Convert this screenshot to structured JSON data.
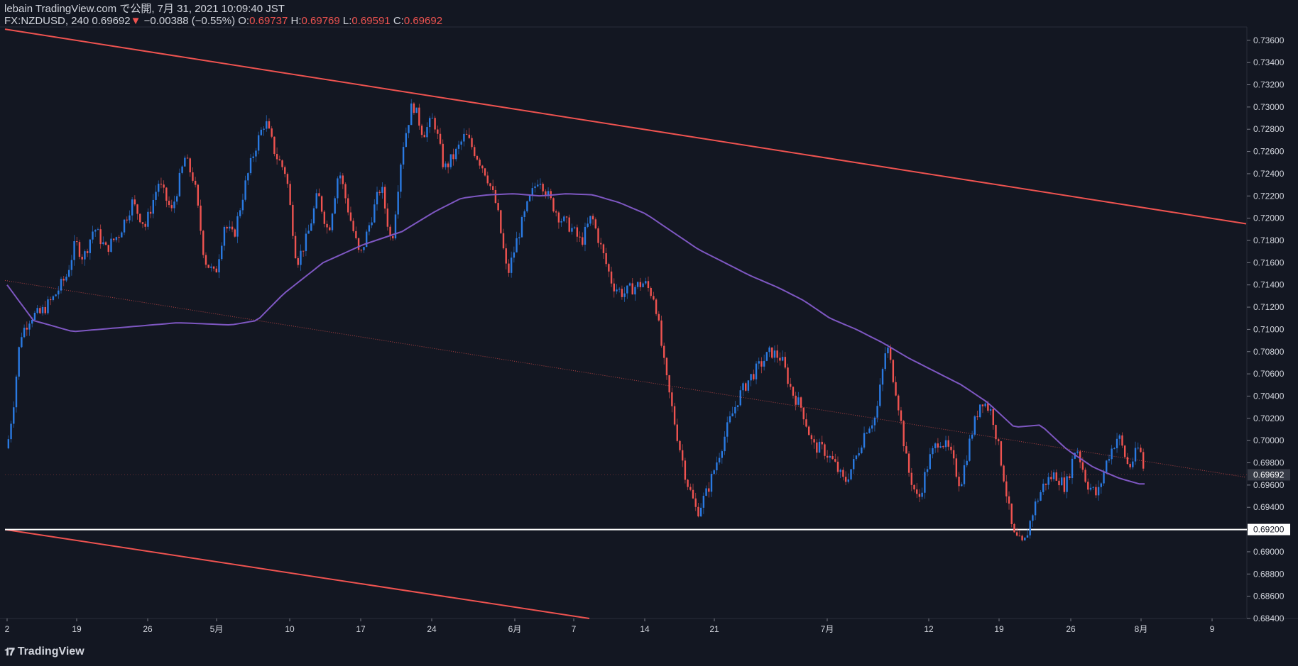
{
  "header": {
    "line1": "lebain TradingView.com で公開, 7月 31, 2021 10:09:40 JST",
    "symbol": "FX:NZDUSD, 240",
    "last": "0.69692",
    "change": "−0.00388 (−0.55%)",
    "o_label": "O:",
    "o": "0.69737",
    "h_label": "H:",
    "h": "0.69769",
    "l_label": "L:",
    "l": "0.69591",
    "c_label": "C:",
    "c": "0.69692"
  },
  "brand": {
    "logo_text": "TradingView",
    "logo_icon": "tradingview-logo-icon"
  },
  "colors": {
    "background": "#131722",
    "up": "#2a7ae2",
    "down": "#ef5350",
    "ma": "#7e57c2",
    "channel": "#ef5350",
    "support": "#ffffff"
  },
  "chart_data": {
    "type": "candlestick",
    "symbol": "FX:NZDUSD",
    "timeframe": "240",
    "ylim": [
      0.684,
      0.7372
    ],
    "yticks": [
      "0.73600",
      "0.73400",
      "0.73200",
      "0.73000",
      "0.72800",
      "0.72600",
      "0.72400",
      "0.72200",
      "0.72000",
      "0.71800",
      "0.71600",
      "0.71400",
      "0.71200",
      "0.71000",
      "0.70800",
      "0.70600",
      "0.70400",
      "0.70200",
      "0.70000",
      "0.69800",
      "0.69600",
      "0.69400",
      "0.69000",
      "0.68800",
      "0.68600",
      "0.68400"
    ],
    "xticks": [
      "2",
      "19",
      "26",
      "5月",
      "10",
      "17",
      "24",
      "6月",
      "7",
      "14",
      "21",
      "7月",
      "12",
      "19",
      "26",
      "8月",
      "9"
    ],
    "last_price_label": "0.69692",
    "support_label": "0.69200",
    "support_level": 0.692,
    "close_path": [
      [
        0,
        0.6993
      ],
      [
        5,
        0.7035
      ],
      [
        10,
        0.7094
      ],
      [
        18,
        0.7112
      ],
      [
        25,
        0.7114
      ],
      [
        35,
        0.7128
      ],
      [
        45,
        0.7148
      ],
      [
        52,
        0.7178
      ],
      [
        58,
        0.7164
      ],
      [
        66,
        0.7192
      ],
      [
        75,
        0.7172
      ],
      [
        85,
        0.7186
      ],
      [
        95,
        0.7214
      ],
      [
        105,
        0.7193
      ],
      [
        115,
        0.7232
      ],
      [
        125,
        0.7206
      ],
      [
        135,
        0.7254
      ],
      [
        142,
        0.7234
      ],
      [
        150,
        0.7163
      ],
      [
        158,
        0.7148
      ],
      [
        165,
        0.7194
      ],
      [
        172,
        0.7183
      ],
      [
        180,
        0.7226
      ],
      [
        188,
        0.7262
      ],
      [
        196,
        0.7288
      ],
      [
        204,
        0.7257
      ],
      [
        212,
        0.724
      ],
      [
        220,
        0.716
      ],
      [
        228,
        0.7183
      ],
      [
        236,
        0.7222
      ],
      [
        244,
        0.7187
      ],
      [
        252,
        0.7244
      ],
      [
        260,
        0.7203
      ],
      [
        268,
        0.7164
      ],
      [
        276,
        0.7198
      ],
      [
        284,
        0.723
      ],
      [
        292,
        0.7176
      ],
      [
        300,
        0.7262
      ],
      [
        308,
        0.7304
      ],
      [
        316,
        0.7276
      ],
      [
        324,
        0.729
      ],
      [
        332,
        0.7244
      ],
      [
        340,
        0.7257
      ],
      [
        348,
        0.7275
      ],
      [
        356,
        0.7258
      ],
      [
        364,
        0.724
      ],
      [
        372,
        0.721
      ],
      [
        380,
        0.7148
      ],
      [
        388,
        0.7184
      ],
      [
        396,
        0.7214
      ],
      [
        404,
        0.7238
      ],
      [
        412,
        0.7217
      ],
      [
        420,
        0.72
      ],
      [
        428,
        0.7192
      ],
      [
        436,
        0.7178
      ],
      [
        444,
        0.7202
      ],
      [
        452,
        0.717
      ],
      [
        460,
        0.714
      ],
      [
        468,
        0.7132
      ],
      [
        476,
        0.7138
      ],
      [
        484,
        0.7142
      ],
      [
        492,
        0.7128
      ],
      [
        500,
        0.706
      ],
      [
        508,
        0.701
      ],
      [
        516,
        0.6965
      ],
      [
        524,
        0.6935
      ],
      [
        532,
        0.6955
      ],
      [
        540,
        0.6985
      ],
      [
        548,
        0.7015
      ],
      [
        556,
        0.704
      ],
      [
        564,
        0.7056
      ],
      [
        572,
        0.7068
      ],
      [
        580,
        0.708
      ],
      [
        588,
        0.7074
      ],
      [
        596,
        0.7044
      ],
      [
        604,
        0.7028
      ],
      [
        612,
        0.6995
      ],
      [
        620,
        0.6992
      ],
      [
        628,
        0.698
      ],
      [
        636,
        0.6962
      ],
      [
        644,
        0.6982
      ],
      [
        652,
        0.701
      ],
      [
        660,
        0.7022
      ],
      [
        668,
        0.7087
      ],
      [
        676,
        0.704
      ],
      [
        684,
        0.6975
      ],
      [
        692,
        0.6945
      ],
      [
        700,
        0.6982
      ],
      [
        708,
        0.7002
      ],
      [
        716,
        0.699
      ],
      [
        724,
        0.696
      ],
      [
        732,
        0.7004
      ],
      [
        740,
        0.7038
      ],
      [
        748,
        0.7025
      ],
      [
        756,
        0.6975
      ],
      [
        764,
        0.6915
      ],
      [
        772,
        0.6905
      ],
      [
        780,
        0.694
      ],
      [
        788,
        0.6962
      ],
      [
        796,
        0.697
      ],
      [
        804,
        0.6958
      ],
      [
        812,
        0.6996
      ],
      [
        820,
        0.6962
      ],
      [
        828,
        0.695
      ],
      [
        836,
        0.6985
      ],
      [
        844,
        0.7005
      ],
      [
        852,
        0.6975
      ],
      [
        860,
        0.6995
      ],
      [
        864,
        0.6969
      ]
    ],
    "ma_path": [
      [
        0,
        0.714
      ],
      [
        20,
        0.7108
      ],
      [
        50,
        0.7098
      ],
      [
        90,
        0.7102
      ],
      [
        130,
        0.7106
      ],
      [
        170,
        0.7104
      ],
      [
        190,
        0.7108
      ],
      [
        210,
        0.7132
      ],
      [
        240,
        0.716
      ],
      [
        270,
        0.7176
      ],
      [
        300,
        0.7188
      ],
      [
        325,
        0.7206
      ],
      [
        345,
        0.7218
      ],
      [
        365,
        0.7221
      ],
      [
        385,
        0.7222
      ],
      [
        405,
        0.722
      ],
      [
        425,
        0.7222
      ],
      [
        445,
        0.7221
      ],
      [
        465,
        0.7214
      ],
      [
        485,
        0.7204
      ],
      [
        505,
        0.7188
      ],
      [
        525,
        0.7172
      ],
      [
        545,
        0.716
      ],
      [
        565,
        0.7148
      ],
      [
        585,
        0.7138
      ],
      [
        605,
        0.7126
      ],
      [
        625,
        0.711
      ],
      [
        645,
        0.71
      ],
      [
        665,
        0.7088
      ],
      [
        685,
        0.7074
      ],
      [
        705,
        0.7062
      ],
      [
        725,
        0.705
      ],
      [
        745,
        0.7034
      ],
      [
        765,
        0.7012
      ],
      [
        785,
        0.7014
      ],
      [
        805,
        0.6992
      ],
      [
        825,
        0.6976
      ],
      [
        845,
        0.6966
      ],
      [
        860,
        0.6961
      ]
    ],
    "channel_upper": {
      "from_price": 0.737,
      "to_price": 0.7195
    },
    "channel_lower": {
      "from_price": 0.692,
      "to_price": 0.684
    },
    "channel_mid": {
      "from_price": 0.7144,
      "to_price": 0.6967
    }
  }
}
